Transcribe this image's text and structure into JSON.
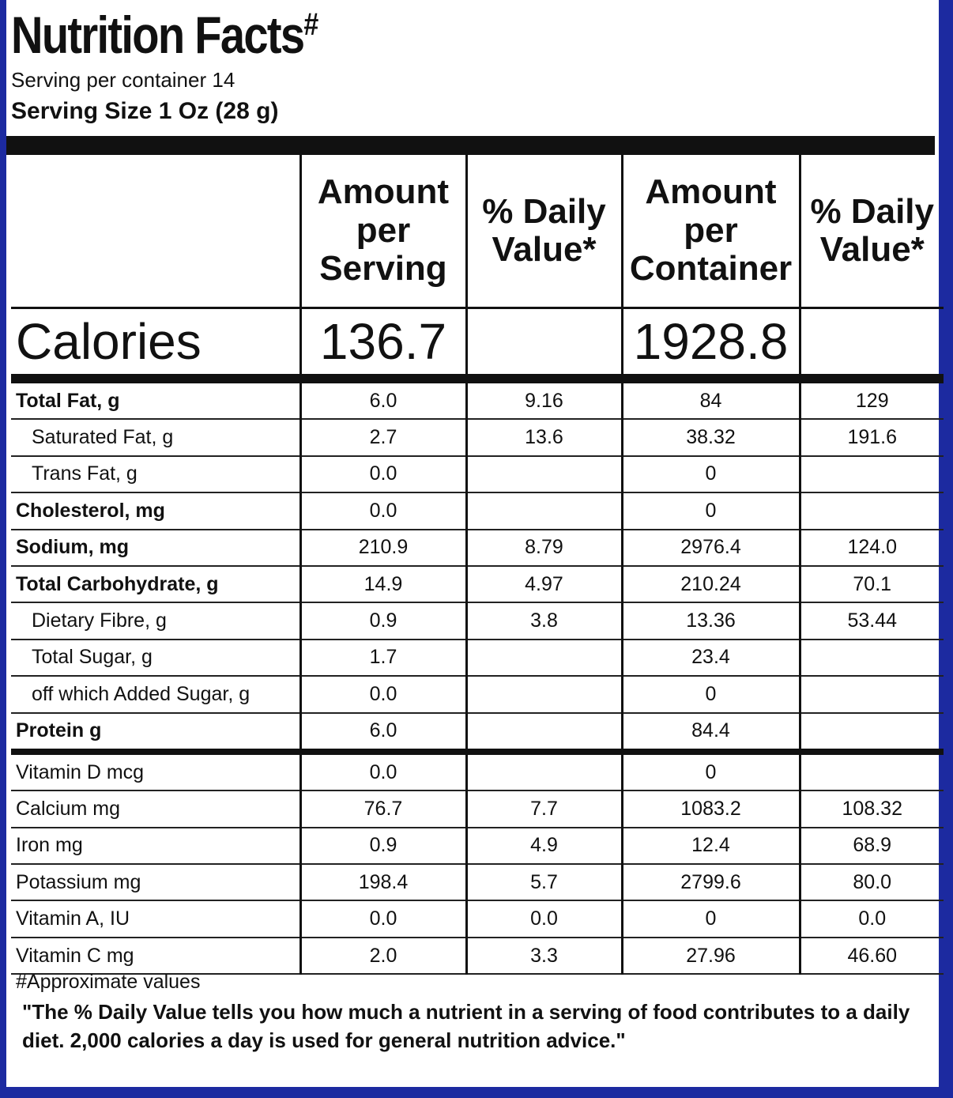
{
  "header": {
    "title": "Nutrition Facts",
    "title_mark": "#",
    "servings": "Serving per container 14",
    "serving_size": "Serving Size 1 Oz (28 g)"
  },
  "table": {
    "columns": [
      "Amount per Serving",
      "% Daily Value*",
      "Amount per Container",
      "% Daily Value*"
    ],
    "calories": [
      "Calories",
      "136.7",
      null,
      "1928.8",
      null
    ],
    "rows": [
      [
        "Total Fat, g",
        "6.0",
        "9.16",
        "84",
        "129"
      ],
      [
        "Saturated Fat, g",
        "2.7",
        "13.6",
        "38.32",
        "191.6"
      ],
      [
        "Trans Fat, g",
        "0.0",
        null,
        "0",
        null
      ],
      [
        "Cholesterol, mg",
        "0.0",
        null,
        "0",
        null
      ],
      [
        "Sodium, mg",
        "210.9",
        "8.79",
        "2976.4",
        "124.0"
      ],
      [
        "Total Carbohydrate, g",
        "14.9",
        "4.97",
        "210.24",
        "70.1"
      ],
      [
        "Dietary Fibre, g",
        "0.9",
        "3.8",
        "13.36",
        "53.44"
      ],
      [
        "Total Sugar, g",
        "1.7",
        null,
        "23.4",
        null
      ],
      [
        "off which Added Sugar, g",
        "0.0",
        null,
        "0",
        null
      ],
      [
        "Protein g",
        "6.0",
        null,
        "84.4",
        null
      ],
      [
        "Vitamin D mcg",
        "0.0",
        null,
        "0",
        null
      ],
      [
        "Calcium mg",
        "76.7",
        "7.7",
        "1083.2",
        "108.32"
      ],
      [
        "Iron mg",
        "0.9",
        "4.9",
        "12.4",
        "68.9"
      ],
      [
        "Potassium mg",
        "198.4",
        "5.7",
        "2799.6",
        "80.0"
      ],
      [
        "Vitamin A, IU",
        "0.0",
        "0.0",
        "0",
        "0.0"
      ],
      [
        "Vitamin C mg",
        "2.0",
        "3.3",
        "27.96",
        "46.60"
      ]
    ]
  },
  "footnotes": {
    "approx": "#Approximate values",
    "daily_value": "\"The % Daily Value tells you how much a nutrient in a serving of food contributes to a daily diet. 2,000 calories a day is used for general nutrition advice.\""
  }
}
